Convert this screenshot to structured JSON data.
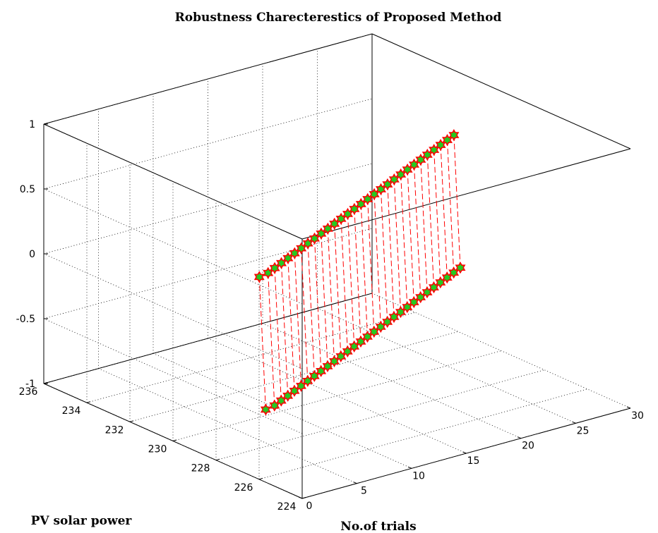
{
  "chart_data": {
    "type": "scatter",
    "projection": "3d",
    "title": "Robustness Charecterestics of Proposed Method",
    "xlabel": "No.of trials",
    "ylabel": "PV solar power",
    "zlabel": "",
    "xlim": [
      0,
      30
    ],
    "ylim": [
      224,
      236
    ],
    "zlim": [
      -1,
      1
    ],
    "xticks": [
      "0",
      "5",
      "10",
      "15",
      "20",
      "25",
      "30"
    ],
    "yticks": [
      "224",
      "226",
      "228",
      "230",
      "232",
      "234",
      "236"
    ],
    "zticks": [
      "-1",
      "-0.5",
      "0",
      "0.5",
      "1"
    ],
    "grid": true,
    "marker": "hexagram, green fill, red edge",
    "line_style": "red dashed",
    "colors": {
      "line": "#ff0000",
      "marker_face": "#22cc22",
      "marker_edge": "#ff0000"
    },
    "x": [
      1,
      2,
      3,
      4,
      5,
      6,
      7,
      8,
      9,
      10,
      11,
      12,
      13,
      14,
      15,
      16,
      17,
      18,
      19,
      20,
      21,
      22,
      23,
      24,
      25,
      26,
      27,
      28,
      29,
      30
    ],
    "series": [
      {
        "y": [
          226.2,
          226.3,
          226.5,
          226.7,
          226.9,
          227.1,
          227.3,
          227.5,
          227.7,
          227.9,
          228.1,
          228.3,
          228.5,
          228.7,
          228.9,
          229.1,
          229.3,
          229.5,
          229.7,
          229.9,
          230.1,
          230.3,
          230.5,
          230.7,
          230.9,
          231.1,
          231.3,
          231.5,
          231.7,
          231.9
        ],
        "z": [
          -0.5,
          -0.5,
          -0.5,
          -0.5,
          -0.5,
          -0.5,
          -0.5,
          -0.5,
          -0.5,
          -0.5,
          -0.5,
          -0.5,
          -0.5,
          -0.5,
          -0.5,
          -0.5,
          -0.5,
          -0.5,
          -0.5,
          -0.5,
          -0.5,
          -0.5,
          -0.5,
          -0.5,
          -0.5,
          -0.5,
          -0.5,
          -0.5,
          -0.5,
          -0.5
        ]
      },
      {
        "y": [
          226.5,
          226.6,
          226.8,
          227.0,
          227.2,
          227.4,
          227.6,
          227.8,
          228.0,
          228.2,
          228.4,
          228.6,
          228.8,
          229.0,
          229.2,
          229.4,
          229.6,
          229.8,
          230.0,
          230.2,
          230.4,
          230.6,
          230.8,
          231.0,
          231.2,
          231.4,
          231.6,
          231.8,
          232.0,
          232.2
        ],
        "z": [
          0.5,
          0.5,
          0.5,
          0.5,
          0.5,
          0.5,
          0.5,
          0.5,
          0.5,
          0.5,
          0.5,
          0.5,
          0.5,
          0.5,
          0.5,
          0.5,
          0.5,
          0.5,
          0.5,
          0.5,
          0.5,
          0.5,
          0.5,
          0.5,
          0.5,
          0.5,
          0.5,
          0.5,
          0.5,
          0.5
        ]
      }
    ]
  }
}
